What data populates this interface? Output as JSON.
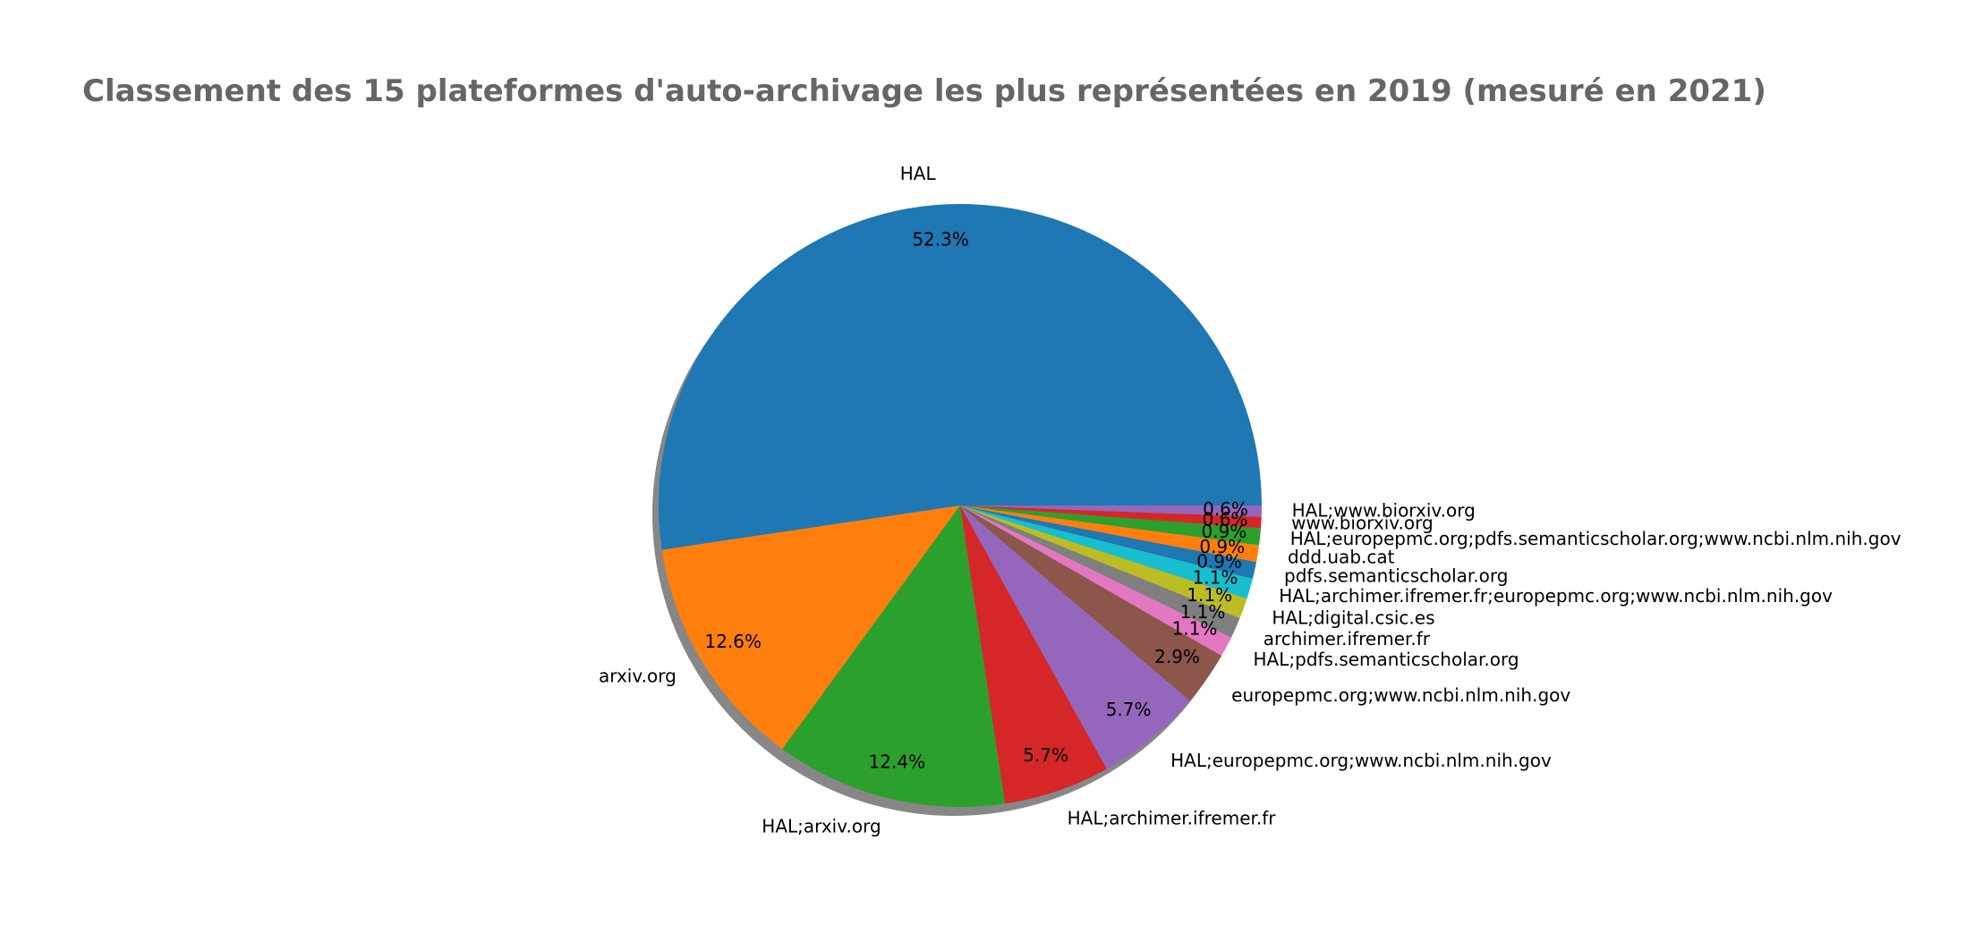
{
  "chart_data": {
    "type": "pie",
    "title": "Classement des 15 plateformes d'auto-archivage les plus représentées en 2019 (mesuré en 2021)",
    "shadow": true,
    "start_angle_deg": 0,
    "direction": "counterclockwise",
    "slices": [
      {
        "label": "HAL",
        "value": 52.3,
        "pct_label": "52.3%",
        "color": "#1f77b4"
      },
      {
        "label": "arxiv.org",
        "value": 12.6,
        "pct_label": "12.6%",
        "color": "#ff7f0e"
      },
      {
        "label": "HAL;arxiv.org",
        "value": 12.4,
        "pct_label": "12.4%",
        "color": "#2ca02c"
      },
      {
        "label": "HAL;archimer.ifremer.fr",
        "value": 5.7,
        "pct_label": "5.7%",
        "color": "#d62728"
      },
      {
        "label": "HAL;europepmc.org;www.ncbi.nlm.nih.gov",
        "value": 5.7,
        "pct_label": "5.7%",
        "color": "#9467bd"
      },
      {
        "label": "europepmc.org;www.ncbi.nlm.nih.gov",
        "value": 2.9,
        "pct_label": "2.9%",
        "color": "#8c564b"
      },
      {
        "label": "HAL;pdfs.semanticscholar.org",
        "value": 1.1,
        "pct_label": "1.1%",
        "color": "#e377c2"
      },
      {
        "label": "archimer.ifremer.fr",
        "value": 1.1,
        "pct_label": "1.1%",
        "color": "#7f7f7f"
      },
      {
        "label": "HAL;digital.csic.es",
        "value": 1.1,
        "pct_label": "1.1%",
        "color": "#bcbd22"
      },
      {
        "label": "HAL;archimer.ifremer.fr;europepmc.org;www.ncbi.nlm.nih.gov",
        "value": 1.1,
        "pct_label": "1.1%",
        "color": "#17becf"
      },
      {
        "label": "pdfs.semanticscholar.org",
        "value": 0.9,
        "pct_label": "0.9%",
        "color": "#1f77b4"
      },
      {
        "label": "ddd.uab.cat",
        "value": 0.9,
        "pct_label": "0.9%",
        "color": "#ff7f0e"
      },
      {
        "label": "HAL;europepmc.org;pdfs.semanticscholar.org;www.ncbi.nlm.nih.gov",
        "value": 0.9,
        "pct_label": "0.9%",
        "color": "#2ca02c"
      },
      {
        "label": "www.biorxiv.org",
        "value": 0.6,
        "pct_label": "0.6%",
        "color": "#d62728"
      },
      {
        "label": "HAL;www.biorxiv.org",
        "value": 0.6,
        "pct_label": "0.6%",
        "color": "#9467bd"
      }
    ]
  }
}
